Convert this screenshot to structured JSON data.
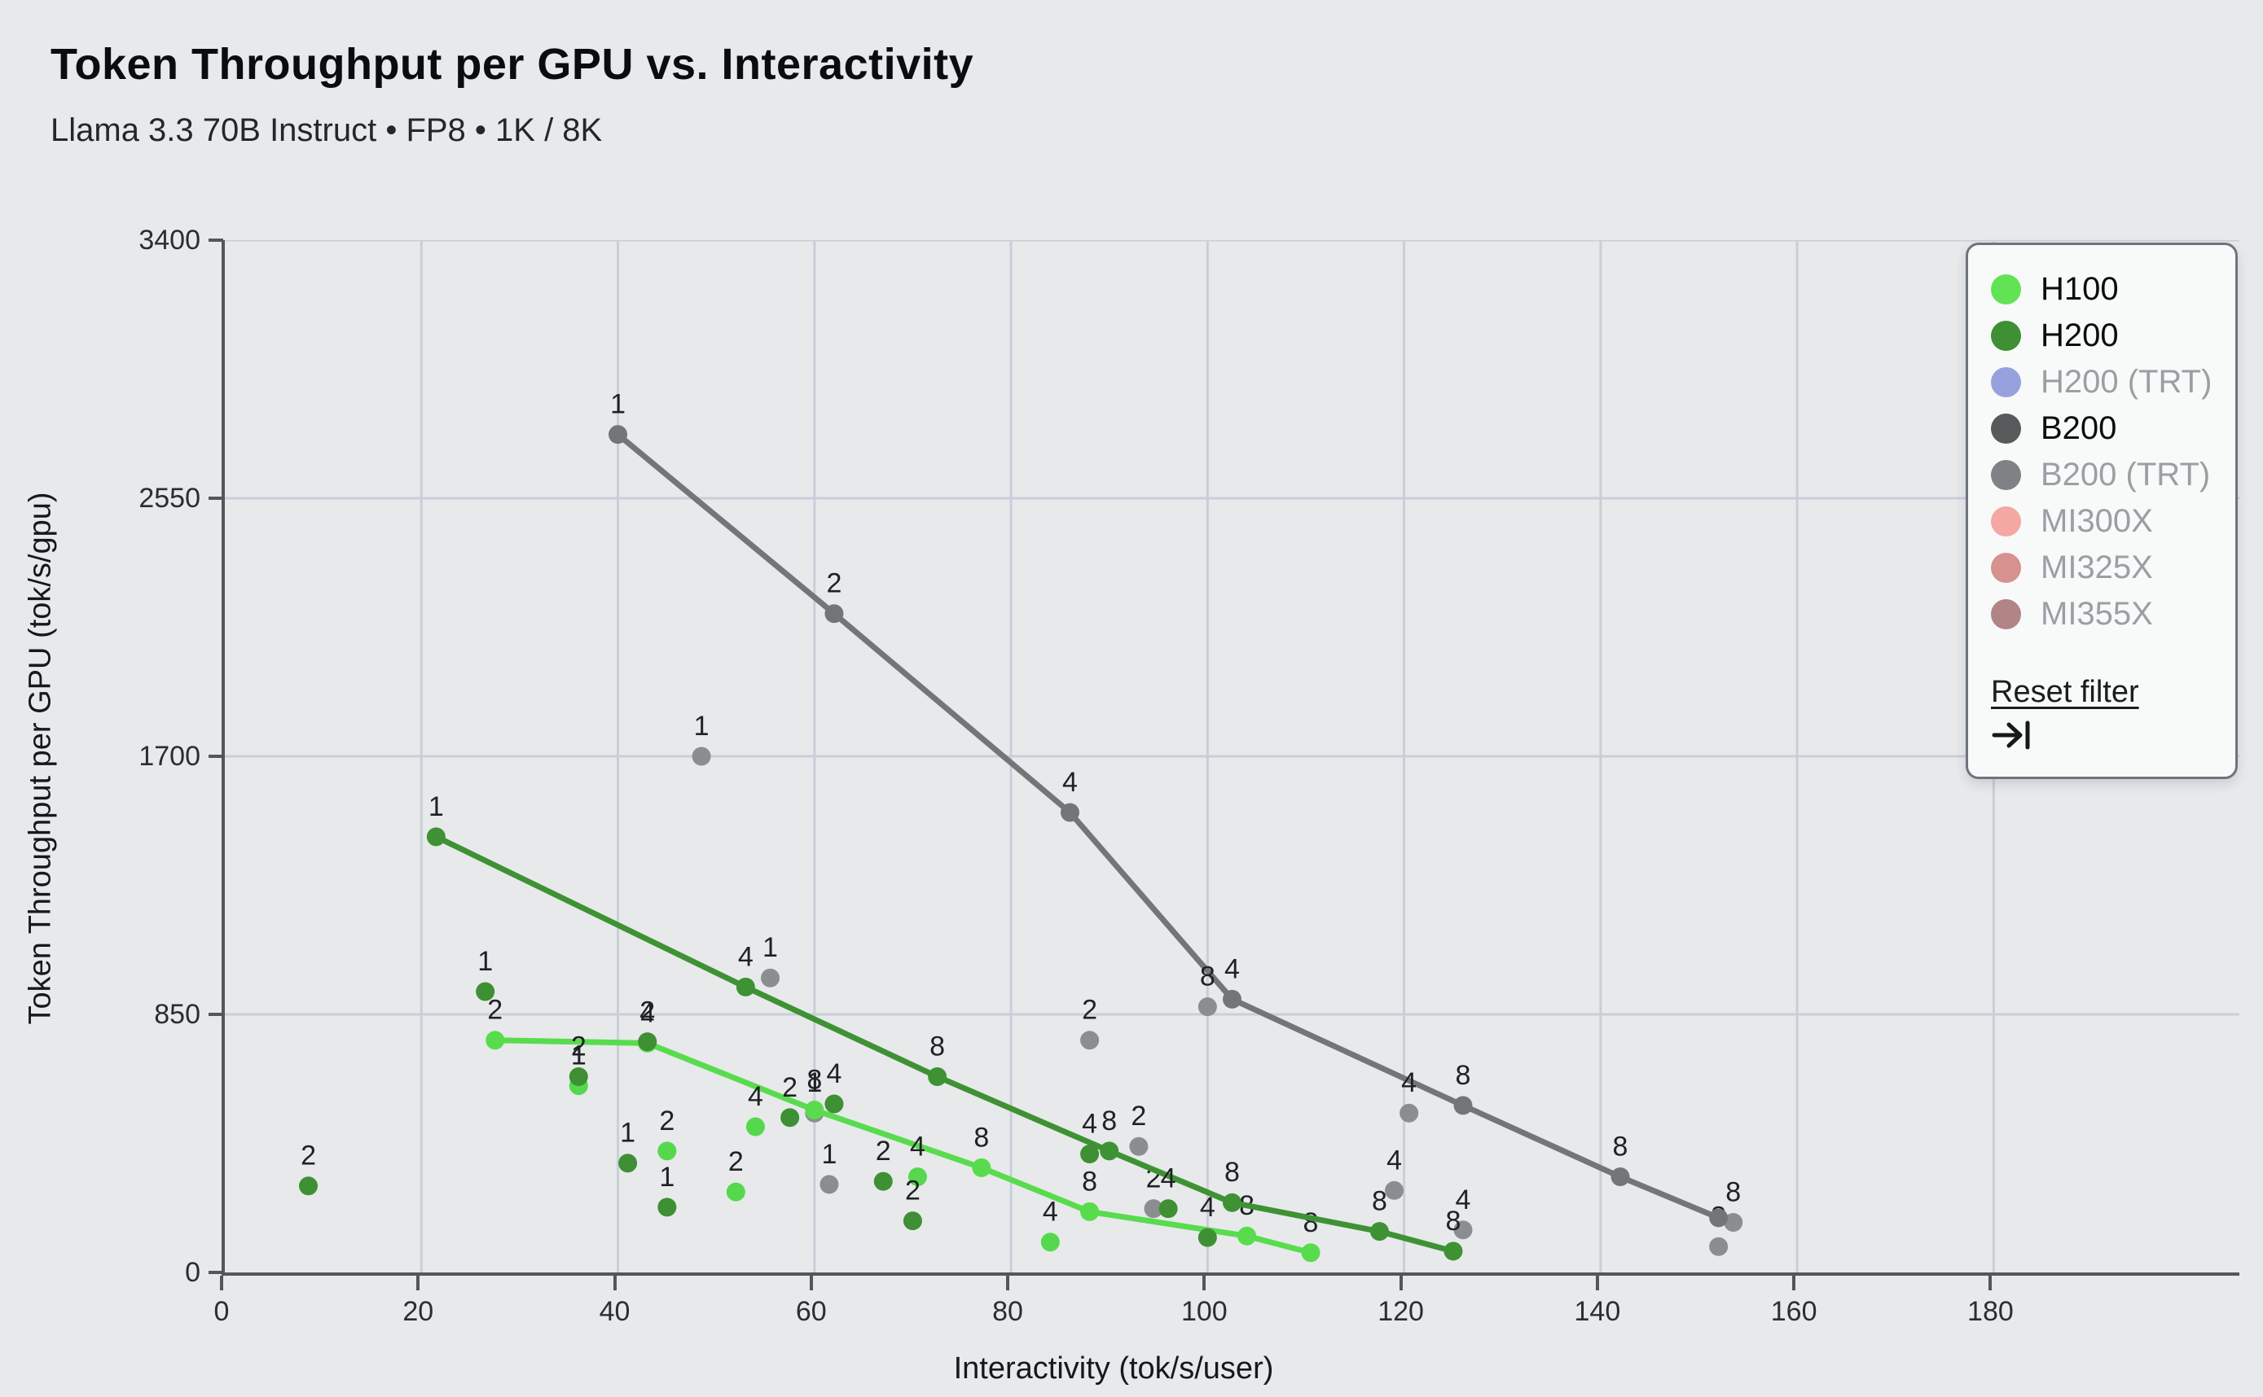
{
  "header": {
    "title": "Token Throughput per GPU vs. Interactivity",
    "subtitle": "Llama 3.3 70B Instruct • FP8 • 1K / 8K"
  },
  "chart_data": {
    "type": "scatter",
    "title": "Token Throughput per GPU vs. Interactivity",
    "subtitle": "Llama 3.3 70B Instruct • FP8 • 1K / 8K",
    "xlabel": "Interactivity (tok/s/user)",
    "ylabel": "Token Throughput per GPU (tok/s/gpu)",
    "x_ticks": [
      0,
      20,
      40,
      60,
      80,
      100,
      120,
      140,
      160,
      180
    ],
    "y_ticks": [
      0,
      850,
      1700,
      2550,
      3400
    ],
    "xlim": [
      0,
      205
    ],
    "ylim": [
      0,
      3400
    ],
    "grid": true,
    "point_label_meaning": "tensor-parallel size (TP)",
    "colors": {
      "background": "#e8e9eb",
      "gridline": "#c9cfd8",
      "axis": "#53565b"
    },
    "series": [
      {
        "name": "H100",
        "z": 1,
        "line_color": "#58dc4e",
        "point_color": "#55d84e",
        "line": [
          {
            "x": 27.5,
            "y": 765,
            "label": "2"
          },
          {
            "x": 43,
            "y": 755,
            "label": "4"
          },
          {
            "x": 60,
            "y": 535,
            "label": "8"
          },
          {
            "x": 77,
            "y": 345,
            "label": "8"
          },
          {
            "x": 88,
            "y": 200,
            "label": "8"
          },
          {
            "x": 104,
            "y": 120,
            "label": "8"
          },
          {
            "x": 110.5,
            "y": 65,
            "label": "8"
          }
        ],
        "scatter": [
          {
            "x": 36,
            "y": 615,
            "label": "1"
          },
          {
            "x": 45,
            "y": 400,
            "label": "2"
          },
          {
            "x": 52,
            "y": 265,
            "label": "2"
          },
          {
            "x": 54,
            "y": 480,
            "label": "4"
          },
          {
            "x": 70.5,
            "y": 315,
            "label": "4"
          },
          {
            "x": 84,
            "y": 100,
            "label": "4"
          }
        ]
      },
      {
        "name": "H200",
        "z": 2,
        "line_color": "#3e9234",
        "point_color": "#3f8f35",
        "line": [
          {
            "x": 21.5,
            "y": 1435,
            "label": "1"
          },
          {
            "x": 53,
            "y": 940,
            "label": "4"
          },
          {
            "x": 72.5,
            "y": 645,
            "label": "8"
          },
          {
            "x": 90,
            "y": 400,
            "label": "8"
          },
          {
            "x": 102.5,
            "y": 230,
            "label": "8"
          },
          {
            "x": 117.5,
            "y": 135,
            "label": "8"
          },
          {
            "x": 125,
            "y": 70,
            "label": "8"
          }
        ],
        "scatter": [
          {
            "x": 8.5,
            "y": 285,
            "label": "2"
          },
          {
            "x": 26.5,
            "y": 925,
            "label": "1"
          },
          {
            "x": 36,
            "y": 645,
            "label": "2"
          },
          {
            "x": 41,
            "y": 360,
            "label": "1"
          },
          {
            "x": 43,
            "y": 760,
            "label": "2"
          },
          {
            "x": 45,
            "y": 215,
            "label": "1"
          },
          {
            "x": 57.5,
            "y": 510,
            "label": "2"
          },
          {
            "x": 62,
            "y": 555,
            "label": "4"
          },
          {
            "x": 67,
            "y": 300,
            "label": "2"
          },
          {
            "x": 70,
            "y": 170,
            "label": "2"
          },
          {
            "x": 88,
            "y": 390,
            "label": "4"
          },
          {
            "x": 96,
            "y": 210,
            "label": "4"
          },
          {
            "x": 100,
            "y": 115,
            "label": "4"
          }
        ]
      },
      {
        "name": "B200",
        "z": 0,
        "line_color": "#737578",
        "point_color": "#8b8d90",
        "line": [
          {
            "x": 40,
            "y": 2760,
            "label": "1"
          },
          {
            "x": 62,
            "y": 2170,
            "label": "2"
          },
          {
            "x": 86,
            "y": 1515,
            "label": "4"
          },
          {
            "x": 102.5,
            "y": 900,
            "label": "4"
          },
          {
            "x": 126,
            "y": 550,
            "label": "8"
          },
          {
            "x": 142,
            "y": 315,
            "label": "8"
          },
          {
            "x": 152,
            "y": 180,
            "label": ""
          }
        ],
        "scatter": [
          {
            "x": 48.5,
            "y": 1700,
            "label": "1"
          },
          {
            "x": 55.5,
            "y": 970,
            "label": "1"
          },
          {
            "x": 60,
            "y": 525,
            "label": "1"
          },
          {
            "x": 61.5,
            "y": 290,
            "label": "1"
          },
          {
            "x": 88,
            "y": 765,
            "label": "2"
          },
          {
            "x": 93,
            "y": 415,
            "label": "2"
          },
          {
            "x": 94.5,
            "y": 210,
            "label": "2"
          },
          {
            "x": 100,
            "y": 875,
            "label": "8"
          },
          {
            "x": 119,
            "y": 270,
            "label": "4"
          },
          {
            "x": 120.5,
            "y": 525,
            "label": "4"
          },
          {
            "x": 126,
            "y": 140,
            "label": "4"
          },
          {
            "x": 152,
            "y": 85,
            "label": "8"
          },
          {
            "x": 153.5,
            "y": 165,
            "label": "8"
          }
        ]
      }
    ]
  },
  "legend": {
    "items": [
      {
        "label": "H100",
        "color": "#62e354",
        "active": true
      },
      {
        "label": "H200",
        "color": "#3f8f35",
        "active": true
      },
      {
        "label": "H200 (TRT)",
        "color": "#97a1de",
        "active": false
      },
      {
        "label": "B200",
        "color": "#58595b",
        "active": true
      },
      {
        "label": "B200 (TRT)",
        "color": "#808184",
        "active": false
      },
      {
        "label": "MI300X",
        "color": "#f3a8a2",
        "active": false
      },
      {
        "label": "MI325X",
        "color": "#d6928e",
        "active": false
      },
      {
        "label": "MI355X",
        "color": "#b18585",
        "active": false
      }
    ],
    "reset_label": "Reset filter",
    "reset_icon": "arrow-to-bar-icon"
  }
}
